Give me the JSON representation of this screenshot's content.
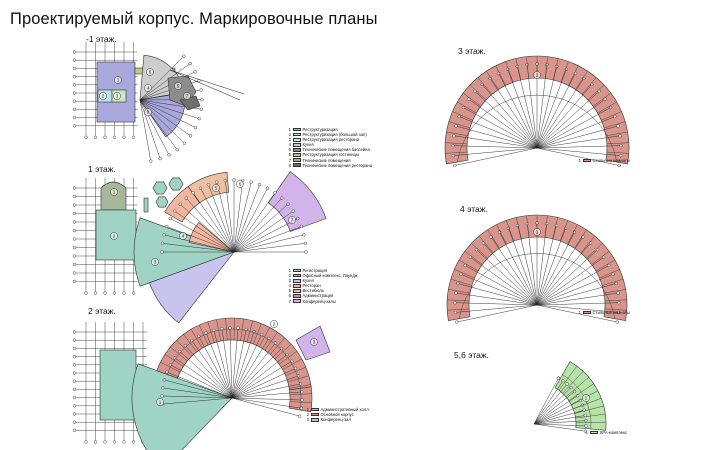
{
  "title": "Проектируемый корпус. Маркировочные планы",
  "floors": {
    "b1": {
      "label": "-1 этаж."
    },
    "f1": {
      "label": "1 этаж."
    },
    "f2": {
      "label": "2 этаж."
    },
    "f3": {
      "label": "3 этаж."
    },
    "f4": {
      "label": "4 этаж."
    },
    "f56": {
      "label": "5,6 этаж."
    }
  },
  "colors": {
    "blue": "#a9a8dc",
    "cyan": "#bfe3f0",
    "mint": "#cfe8c0",
    "grey": "#cdcdcd",
    "darkgrey": "#8c8c8c",
    "olive": "#c9c77e",
    "teal": "#9fd3c3",
    "darkgreen": "#a7b89a",
    "salmon": "#f2b6a0",
    "orange": "#eebfa0",
    "purple": "#d2b3ea",
    "red": "#d9958c",
    "green": "#b6e3a8",
    "lavender": "#c8c4ee"
  },
  "legends": {
    "b1": [
      {
        "n": "1",
        "text": "Реструктуризация",
        "color": "#a9a8dc"
      },
      {
        "n": "2",
        "text": "Реструктуризация (большой зал)",
        "color": "#bfe3f0"
      },
      {
        "n": "3",
        "text": "Реструктуризация ресторана",
        "color": "#cfe8c0"
      },
      {
        "n": "4",
        "text": "Кухня",
        "color": "#cdcdcd"
      },
      {
        "n": "5",
        "text": "Технические помещения бассейна",
        "color": "#8c8c8c"
      },
      {
        "n": "6",
        "text": "Реструктуризация гостиницы",
        "color": "#c9c77e"
      },
      {
        "n": "7",
        "text": "Технические помещения",
        "color": "#a7a7a7"
      },
      {
        "n": "8",
        "text": "Технические помещения ресторана",
        "color": "#6f6f6f"
      }
    ],
    "f1": [
      {
        "n": "1",
        "text": "Регистрация",
        "color": "#9fd3c3"
      },
      {
        "n": "2",
        "text": "Офисный комплекс, Лаундж",
        "color": "#a7b89a"
      },
      {
        "n": "3",
        "text": "Кухня",
        "color": "#c8c4ee"
      },
      {
        "n": "4",
        "text": "Ресторан",
        "color": "#f2b6a0"
      },
      {
        "n": "5",
        "text": "Вестибюль",
        "color": "#eebfa0"
      },
      {
        "n": "6",
        "text": "Администрация",
        "color": "#d9958c"
      },
      {
        "n": "7",
        "text": "Конференц-залы",
        "color": "#d2b3ea"
      }
    ],
    "f2": [
      {
        "n": "1",
        "text": "Административный холл",
        "color": "#9fd3c3"
      },
      {
        "n": "2",
        "text": "Основной корпус",
        "color": "#d9958c"
      },
      {
        "n": "3",
        "text": "Конференц-зал",
        "color": "#d2b3ea"
      }
    ],
    "f3": [
      {
        "n": "1",
        "text": "Стильные комнаты",
        "color": "#d9958c"
      }
    ],
    "f4": [
      {
        "n": "1",
        "text": "Стильные комнаты",
        "color": "#d9958c"
      }
    ],
    "f56": [
      {
        "n": "1",
        "text": "SPA-комплекс",
        "color": "#b6e3a8"
      }
    ]
  }
}
